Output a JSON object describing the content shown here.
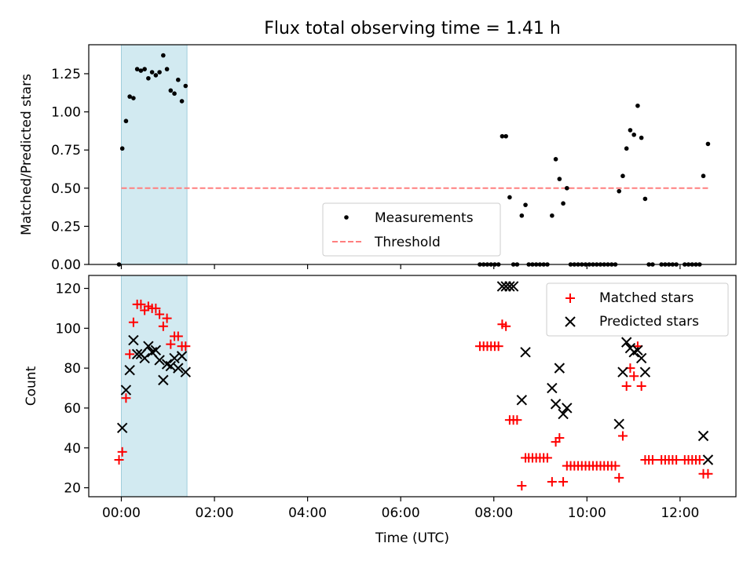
{
  "chart_data": {
    "type": "scatter",
    "title": "Flux total observing time = 1.41 h",
    "xlabel": "Time (UTC)",
    "x_ticks": [
      "00:00",
      "02:00",
      "04:00",
      "06:00",
      "08:00",
      "10:00",
      "12:00"
    ],
    "x_tick_hours": [
      0,
      2,
      4,
      6,
      8,
      10,
      12
    ],
    "xlim_hours": [
      -0.7,
      13.2
    ],
    "highlight_span_hours": [
      0,
      1.41
    ],
    "colors": {
      "measurements": "#000000",
      "threshold": "#ff7f7f",
      "matched": "#ff0000",
      "predicted": "#000000",
      "span": "#add8e6"
    },
    "top": {
      "ylabel": "Matched/Predicted stars",
      "ylim": [
        0,
        1.44
      ],
      "y_ticks": [
        "0.00",
        "0.25",
        "0.50",
        "0.75",
        "1.00",
        "1.25"
      ],
      "y_tick_values": [
        0,
        0.25,
        0.5,
        0.75,
        1.0,
        1.25
      ],
      "legend": {
        "position": "lower-center",
        "labels": [
          "Measurements",
          "Threshold"
        ]
      },
      "threshold": {
        "label": "Threshold",
        "y": 0.5,
        "x_range": [
          0,
          12.6
        ]
      },
      "series": [
        {
          "name": "Measurements",
          "points": [
            [
              -0.05,
              0.0
            ],
            [
              0.02,
              0.76
            ],
            [
              0.1,
              0.94
            ],
            [
              0.18,
              1.1
            ],
            [
              0.26,
              1.09
            ],
            [
              0.34,
              1.28
            ],
            [
              0.42,
              1.27
            ],
            [
              0.5,
              1.28
            ],
            [
              0.58,
              1.22
            ],
            [
              0.66,
              1.26
            ],
            [
              0.74,
              1.24
            ],
            [
              0.82,
              1.26
            ],
            [
              0.9,
              1.37
            ],
            [
              0.98,
              1.28
            ],
            [
              1.06,
              1.14
            ],
            [
              1.14,
              1.12
            ],
            [
              1.22,
              1.21
            ],
            [
              1.3,
              1.07
            ],
            [
              1.38,
              1.17
            ],
            [
              7.7,
              0.0
            ],
            [
              7.78,
              0.0
            ],
            [
              7.86,
              0.0
            ],
            [
              7.94,
              0.0
            ],
            [
              8.02,
              0.0
            ],
            [
              8.1,
              0.0
            ],
            [
              8.18,
              0.84
            ],
            [
              8.26,
              0.84
            ],
            [
              8.34,
              0.44
            ],
            [
              8.42,
              0.0
            ],
            [
              8.5,
              0.0
            ],
            [
              8.6,
              0.32
            ],
            [
              8.68,
              0.39
            ],
            [
              8.75,
              0.0
            ],
            [
              8.83,
              0.0
            ],
            [
              8.91,
              0.0
            ],
            [
              8.99,
              0.0
            ],
            [
              9.07,
              0.0
            ],
            [
              9.15,
              0.0
            ],
            [
              9.25,
              0.32
            ],
            [
              9.33,
              0.69
            ],
            [
              9.41,
              0.56
            ],
            [
              9.49,
              0.4
            ],
            [
              9.57,
              0.5
            ],
            [
              9.65,
              0.0
            ],
            [
              9.73,
              0.0
            ],
            [
              9.81,
              0.0
            ],
            [
              9.89,
              0.0
            ],
            [
              9.97,
              0.0
            ],
            [
              10.05,
              0.0
            ],
            [
              10.13,
              0.0
            ],
            [
              10.21,
              0.0
            ],
            [
              10.29,
              0.0
            ],
            [
              10.37,
              0.0
            ],
            [
              10.45,
              0.0
            ],
            [
              10.53,
              0.0
            ],
            [
              10.61,
              0.0
            ],
            [
              10.69,
              0.48
            ],
            [
              10.77,
              0.58
            ],
            [
              10.85,
              0.76
            ],
            [
              10.93,
              0.88
            ],
            [
              11.01,
              0.85
            ],
            [
              11.09,
              1.04
            ],
            [
              11.17,
              0.83
            ],
            [
              11.25,
              0.43
            ],
            [
              11.33,
              0.0
            ],
            [
              11.41,
              0.0
            ],
            [
              11.6,
              0.0
            ],
            [
              11.68,
              0.0
            ],
            [
              11.76,
              0.0
            ],
            [
              11.84,
              0.0
            ],
            [
              11.92,
              0.0
            ],
            [
              12.1,
              0.0
            ],
            [
              12.18,
              0.0
            ],
            [
              12.26,
              0.0
            ],
            [
              12.34,
              0.0
            ],
            [
              12.42,
              0.0
            ],
            [
              12.5,
              0.58
            ],
            [
              12.6,
              0.79
            ]
          ]
        }
      ]
    },
    "bottom": {
      "ylabel": "Count",
      "ylim": [
        15.5,
        126.5
      ],
      "y_ticks": [
        "20",
        "40",
        "60",
        "80",
        "100",
        "120"
      ],
      "y_tick_values": [
        20,
        40,
        60,
        80,
        100,
        120
      ],
      "legend": {
        "position": "upper-right",
        "labels": [
          "Matched stars",
          "Predicted stars"
        ]
      },
      "series": [
        {
          "name": "Matched stars",
          "points": [
            [
              -0.05,
              34
            ],
            [
              0.02,
              38
            ],
            [
              0.1,
              65
            ],
            [
              0.18,
              87
            ],
            [
              0.26,
              103
            ],
            [
              0.34,
              112
            ],
            [
              0.42,
              112
            ],
            [
              0.5,
              109
            ],
            [
              0.58,
              111
            ],
            [
              0.66,
              110
            ],
            [
              0.74,
              110
            ],
            [
              0.82,
              107
            ],
            [
              0.9,
              101
            ],
            [
              0.98,
              105
            ],
            [
              1.06,
              92
            ],
            [
              1.14,
              96
            ],
            [
              1.22,
              96
            ],
            [
              1.3,
              91
            ],
            [
              1.38,
              91
            ],
            [
              7.7,
              91
            ],
            [
              7.78,
              91
            ],
            [
              7.86,
              91
            ],
            [
              7.94,
              91
            ],
            [
              8.02,
              91
            ],
            [
              8.1,
              91
            ],
            [
              8.18,
              102
            ],
            [
              8.26,
              101
            ],
            [
              8.34,
              54
            ],
            [
              8.42,
              54
            ],
            [
              8.5,
              54
            ],
            [
              8.6,
              21
            ],
            [
              8.68,
              35
            ],
            [
              8.75,
              35
            ],
            [
              8.83,
              35
            ],
            [
              8.91,
              35
            ],
            [
              8.99,
              35
            ],
            [
              9.07,
              35
            ],
            [
              9.15,
              35
            ],
            [
              9.25,
              23
            ],
            [
              9.33,
              43
            ],
            [
              9.41,
              45
            ],
            [
              9.49,
              23
            ],
            [
              9.57,
              31
            ],
            [
              9.65,
              31
            ],
            [
              9.73,
              31
            ],
            [
              9.81,
              31
            ],
            [
              9.89,
              31
            ],
            [
              9.97,
              31
            ],
            [
              10.05,
              31
            ],
            [
              10.13,
              31
            ],
            [
              10.21,
              31
            ],
            [
              10.29,
              31
            ],
            [
              10.37,
              31
            ],
            [
              10.45,
              31
            ],
            [
              10.53,
              31
            ],
            [
              10.61,
              31
            ],
            [
              10.69,
              25
            ],
            [
              10.77,
              46
            ],
            [
              10.85,
              71
            ],
            [
              10.93,
              80
            ],
            [
              11.01,
              76
            ],
            [
              11.09,
              91
            ],
            [
              11.17,
              71
            ],
            [
              11.25,
              34
            ],
            [
              11.33,
              34
            ],
            [
              11.41,
              34
            ],
            [
              11.6,
              34
            ],
            [
              11.68,
              34
            ],
            [
              11.76,
              34
            ],
            [
              11.84,
              34
            ],
            [
              11.92,
              34
            ],
            [
              12.1,
              34
            ],
            [
              12.18,
              34
            ],
            [
              12.26,
              34
            ],
            [
              12.34,
              34
            ],
            [
              12.42,
              34
            ],
            [
              12.5,
              27
            ],
            [
              12.6,
              27
            ]
          ]
        },
        {
          "name": "Predicted stars",
          "points": [
            [
              0.02,
              50
            ],
            [
              0.1,
              69
            ],
            [
              0.18,
              79
            ],
            [
              0.26,
              94
            ],
            [
              0.34,
              87
            ],
            [
              0.42,
              87
            ],
            [
              0.5,
              85
            ],
            [
              0.58,
              91
            ],
            [
              0.66,
              88
            ],
            [
              0.74,
              89
            ],
            [
              0.82,
              84
            ],
            [
              0.9,
              74
            ],
            [
              0.98,
              82
            ],
            [
              1.06,
              81
            ],
            [
              1.14,
              85
            ],
            [
              1.22,
              80
            ],
            [
              1.3,
              86
            ],
            [
              1.38,
              78
            ],
            [
              8.18,
              121
            ],
            [
              8.26,
              121
            ],
            [
              8.34,
              121
            ],
            [
              8.42,
              121
            ],
            [
              8.6,
              64
            ],
            [
              8.68,
              88
            ],
            [
              9.25,
              70
            ],
            [
              9.33,
              62
            ],
            [
              9.41,
              80
            ],
            [
              9.49,
              57
            ],
            [
              9.57,
              60
            ],
            [
              10.69,
              52
            ],
            [
              10.77,
              78
            ],
            [
              10.85,
              93
            ],
            [
              10.93,
              90
            ],
            [
              11.01,
              88
            ],
            [
              11.09,
              89
            ],
            [
              11.17,
              85
            ],
            [
              11.25,
              78
            ],
            [
              12.5,
              46
            ],
            [
              12.6,
              34
            ]
          ]
        }
      ]
    }
  }
}
